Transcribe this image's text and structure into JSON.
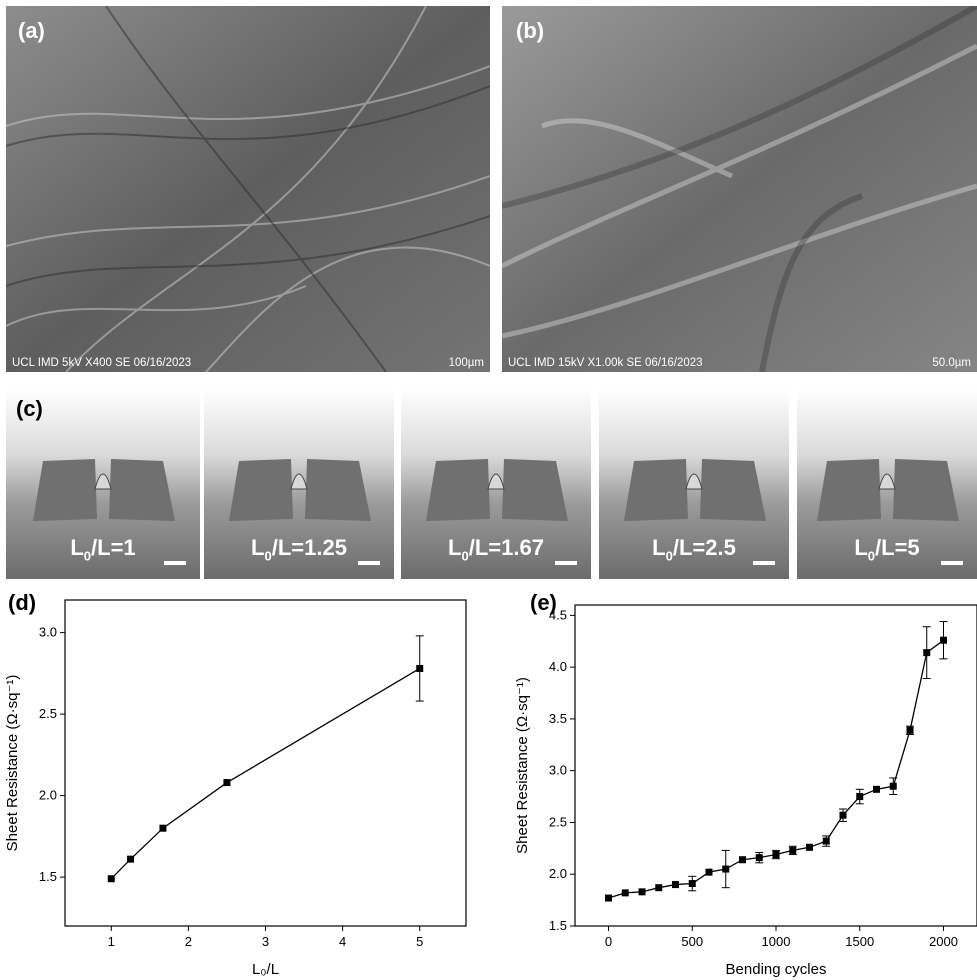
{
  "panels": {
    "a": {
      "label": "(a)",
      "meta": "UCL IMD 5kV X400 SE 06/16/2023",
      "scale": "100µm"
    },
    "b": {
      "label": "(b)",
      "meta": "UCL IMD 15kV X1.00k SE 06/16/2023",
      "scale": "50.0µm"
    },
    "c": {
      "label": "(c)",
      "photos": [
        {
          "main": "L",
          "sub": "0",
          "rest": "/L=1"
        },
        {
          "main": "L",
          "sub": "0",
          "rest": "/L=1.25"
        },
        {
          "main": "L",
          "sub": "0",
          "rest": "/L=1.67"
        },
        {
          "main": "L",
          "sub": "0",
          "rest": "/L=2.5"
        },
        {
          "main": "L",
          "sub": "0",
          "rest": "/L=5"
        }
      ]
    },
    "d": {
      "label": "(d)"
    },
    "e": {
      "label": "(e)"
    }
  },
  "colors": {
    "line": "#000000",
    "sem_gray": "#6e6e6e",
    "photo_bg": "#8a8a8a"
  },
  "chart_data": [
    {
      "id": "d",
      "type": "line",
      "xlabel": "L₀/L",
      "ylabel": "Sheet Resistance (Ω·sq⁻¹)",
      "xlim": [
        0.4,
        5.6
      ],
      "ylim": [
        1.2,
        3.2
      ],
      "xticks": [
        1,
        2,
        3,
        4,
        5
      ],
      "yticks": [
        1.5,
        2.0,
        2.5,
        3.0
      ],
      "x": [
        1,
        1.25,
        1.67,
        2.5,
        5
      ],
      "y": [
        1.49,
        1.61,
        1.8,
        2.08,
        2.78
      ],
      "err": [
        0.015,
        0.015,
        0.015,
        0.015,
        0.2
      ],
      "marker": "square",
      "grid": false
    },
    {
      "id": "e",
      "type": "line",
      "xlabel": "Bending cycles",
      "ylabel": "Sheet Resistance (Ω·sq⁻¹)",
      "xlim": [
        -200,
        2200
      ],
      "ylim": [
        1.5,
        4.6
      ],
      "xticks": [
        0,
        500,
        1000,
        1500,
        2000
      ],
      "yticks": [
        1.5,
        2.0,
        2.5,
        3.0,
        3.5,
        4.0,
        4.5
      ],
      "x": [
        0,
        100,
        200,
        300,
        400,
        500,
        600,
        700,
        800,
        900,
        1000,
        1100,
        1200,
        1300,
        1400,
        1500,
        1600,
        1700,
        1800,
        1900,
        2000
      ],
      "y": [
        1.77,
        1.82,
        1.83,
        1.87,
        1.9,
        1.91,
        2.02,
        2.05,
        2.14,
        2.16,
        2.19,
        2.23,
        2.26,
        2.32,
        2.57,
        2.75,
        2.82,
        2.85,
        3.39,
        4.14,
        4.26
      ],
      "err": [
        0.02,
        0.02,
        0.02,
        0.02,
        0.02,
        0.07,
        0.02,
        0.18,
        0.03,
        0.05,
        0.04,
        0.04,
        0.03,
        0.05,
        0.06,
        0.07,
        0.03,
        0.08,
        0.04,
        0.25,
        0.18
      ],
      "marker": "square",
      "grid": false
    }
  ]
}
